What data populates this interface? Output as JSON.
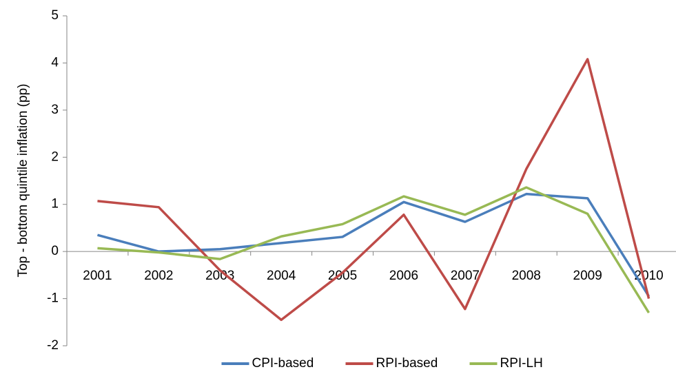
{
  "chart_data": {
    "type": "line",
    "y_label": "Top - bottom quintile inflation (pp)",
    "categories": [
      "2001",
      "2002",
      "2003",
      "2004",
      "2005",
      "2006",
      "2007",
      "2008",
      "2009",
      "2010"
    ],
    "series": [
      {
        "name": "CPI-based",
        "color": "#4a7ebb",
        "values": [
          0.35,
          0.0,
          0.05,
          0.18,
          0.31,
          1.05,
          0.63,
          1.22,
          1.13,
          -0.95
        ]
      },
      {
        "name": "RPI-based",
        "color": "#be4b48",
        "values": [
          1.07,
          0.94,
          -0.4,
          -1.45,
          -0.45,
          0.78,
          -1.22,
          1.75,
          4.08,
          -1.0
        ]
      },
      {
        "name": "RPI-LH",
        "color": "#98b954",
        "values": [
          0.07,
          -0.02,
          -0.16,
          0.32,
          0.58,
          1.17,
          0.78,
          1.36,
          0.8,
          -1.3
        ]
      }
    ],
    "ylim": [
      -2,
      5
    ],
    "yticks": [
      -2,
      -1,
      0,
      1,
      2,
      3,
      4,
      5
    ],
    "legend": "bottom"
  }
}
